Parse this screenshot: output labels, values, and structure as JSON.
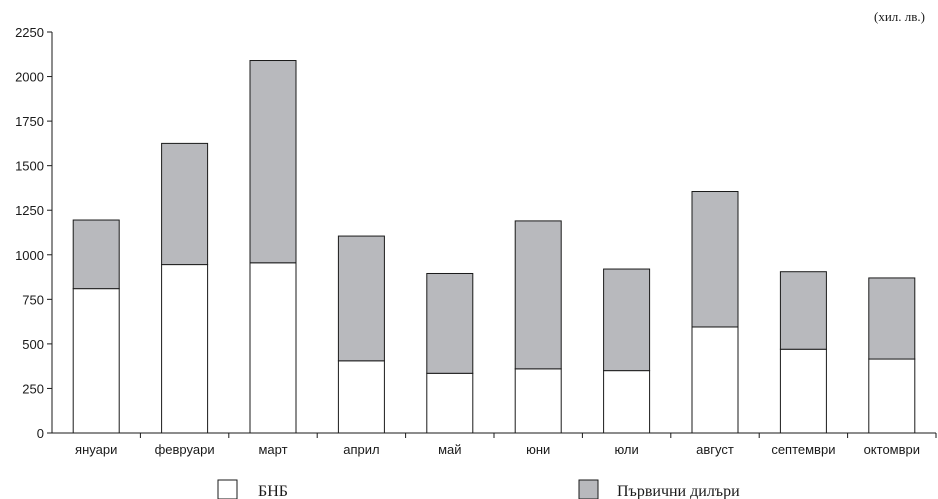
{
  "chart_data": {
    "type": "bar",
    "stacked": true,
    "unit_label": "(хил. лв.)",
    "categories": [
      "януари",
      "февруари",
      "март",
      "април",
      "май",
      "юни",
      "юли",
      "август",
      "септември",
      "октомври"
    ],
    "series": [
      {
        "name": "БНБ",
        "color": "#ffffff",
        "values": [
          810,
          945,
          955,
          405,
          335,
          360,
          350,
          595,
          470,
          415
        ]
      },
      {
        "name": "Първични дилъри",
        "color": "#b8b9bd",
        "values": [
          385,
          680,
          1135,
          700,
          560,
          830,
          570,
          760,
          435,
          455
        ]
      }
    ],
    "ylim": [
      0,
      2250
    ],
    "yticks": [
      0,
      250,
      500,
      750,
      1000,
      1250,
      1500,
      1750,
      2000,
      2250
    ],
    "grid": false,
    "legend": "bottom"
  }
}
